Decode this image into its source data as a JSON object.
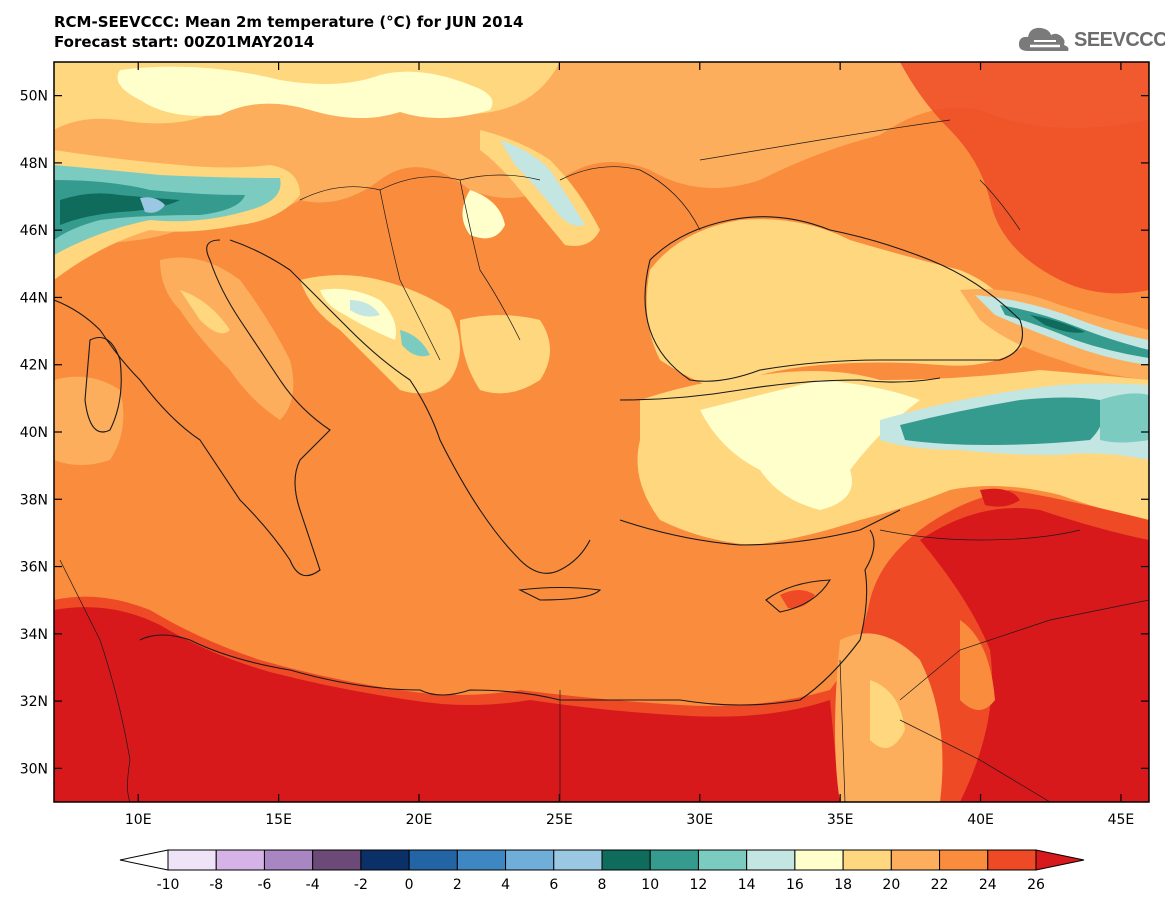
{
  "header": {
    "title": "RCM-SEEVCCC: Mean 2m temperature (°C) for JUN 2014",
    "subtitle": "Forecast start: 00Z01MAY2014"
  },
  "logo": {
    "text": "SEEVCCC",
    "icon": "cloud-icon"
  },
  "map": {
    "lon_range": [
      7,
      46
    ],
    "lat_range": [
      29,
      51
    ],
    "lon_ticks": [
      {
        "value": 10,
        "label": "10E"
      },
      {
        "value": 15,
        "label": "15E"
      },
      {
        "value": 20,
        "label": "20E"
      },
      {
        "value": 25,
        "label": "25E"
      },
      {
        "value": 30,
        "label": "30E"
      },
      {
        "value": 35,
        "label": "35E"
      },
      {
        "value": 40,
        "label": "40E"
      },
      {
        "value": 45,
        "label": "45E"
      }
    ],
    "lat_ticks": [
      {
        "value": 30,
        "label": "30N"
      },
      {
        "value": 32,
        "label": "32N"
      },
      {
        "value": 34,
        "label": "34N"
      },
      {
        "value": 36,
        "label": "36N"
      },
      {
        "value": 38,
        "label": "38N"
      },
      {
        "value": 40,
        "label": "40N"
      },
      {
        "value": 42,
        "label": "42N"
      },
      {
        "value": 44,
        "label": "44N"
      },
      {
        "value": 46,
        "label": "46N"
      },
      {
        "value": 48,
        "label": "48N"
      },
      {
        "value": 50,
        "label": "50N"
      }
    ]
  },
  "colorbar": {
    "labels": [
      "-10",
      "-8",
      "-6",
      "-4",
      "-2",
      "0",
      "2",
      "4",
      "6",
      "8",
      "10",
      "12",
      "14",
      "16",
      "18",
      "20",
      "22",
      "24",
      "26"
    ],
    "low_color": "#ffffff",
    "high_color": "#d7191c",
    "colors": [
      "#efe4f7",
      "#d6b3e6",
      "#a886c2",
      "#6b4a78",
      "#0b3068",
      "#2365a4",
      "#3f87c2",
      "#6faed8",
      "#9ac8e3",
      "#0f6b5c",
      "#359b8f",
      "#7ccbc1",
      "#c3e6e2",
      "#ffffcc",
      "#fed77e",
      "#fdae5c",
      "#f98c3d",
      "#ee4a26"
    ]
  }
}
